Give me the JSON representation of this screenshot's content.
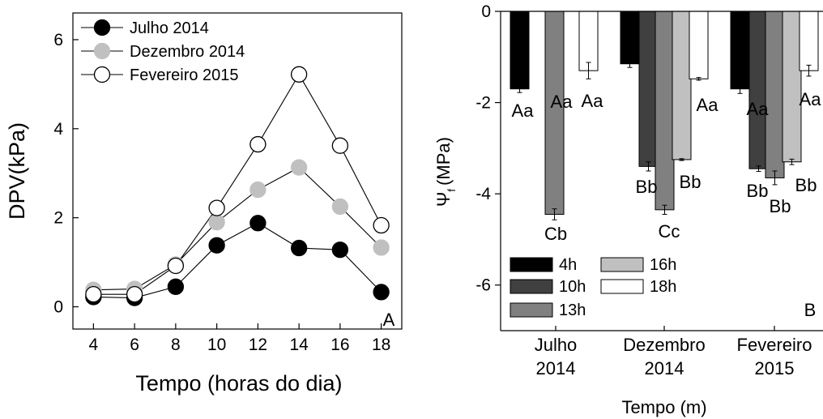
{
  "chart_data": [
    {
      "type": "line",
      "panel_label": "A",
      "xlabel": "Tempo (horas do dia)",
      "ylabel": "DPV(kPa)",
      "xlim": [
        3,
        19
      ],
      "ylim": [
        -0.5,
        6.6
      ],
      "xticks": [
        "4",
        "6",
        "8",
        "10",
        "12",
        "14",
        "16",
        "18"
      ],
      "yticks": [
        "0",
        "2",
        "4",
        "6"
      ],
      "x": [
        4,
        6,
        8,
        10,
        12,
        14,
        16,
        18
      ],
      "legend_position": "top-left",
      "series": [
        {
          "name": "Julho 2014",
          "marker": "filled",
          "color": "#000000",
          "values": [
            0.22,
            0.2,
            0.45,
            1.38,
            1.88,
            1.32,
            1.28,
            0.33
          ]
        },
        {
          "name": "Dezembro 2014",
          "marker": "filled",
          "color": "#c0c0c0",
          "values": [
            0.38,
            0.4,
            0.95,
            1.9,
            2.63,
            3.13,
            2.25,
            1.33
          ]
        },
        {
          "name": "Fevereiro 2015",
          "marker": "open",
          "color": "#ffffff",
          "values": [
            0.28,
            0.28,
            0.92,
            2.22,
            3.65,
            5.22,
            3.62,
            1.83
          ]
        }
      ]
    },
    {
      "type": "bar",
      "panel_label": "B",
      "xlabel": "Tempo (m)",
      "ylabel": "Ψ",
      "ylabel_subscript": "f",
      "ylabel_unit": "(MPa)",
      "ylim": [
        -7,
        0
      ],
      "yticks": [
        "0",
        "-2",
        "-4",
        "-6"
      ],
      "categories": [
        "Julho\n2014",
        "Dezembro\n2014",
        "Fevereiro\n2015"
      ],
      "legend_position": "bottom-left",
      "series": [
        {
          "name": "4h",
          "color": "#000000",
          "values": [
            -1.7,
            -1.15,
            -1.7
          ],
          "errors": [
            0.08,
            0.08,
            0.1
          ],
          "labels": [
            "Aa",
            "Aa",
            "Aa"
          ]
        },
        {
          "name": "10h",
          "color": "#404040",
          "values": [
            null,
            -3.4,
            -3.45
          ],
          "errors": [
            null,
            0.1,
            0.06
          ],
          "labels": [
            "",
            "Bb",
            "Bb"
          ]
        },
        {
          "name": "13h",
          "color": "#808080",
          "values": [
            -4.45,
            -4.35,
            -3.65
          ],
          "errors": [
            0.12,
            0.1,
            0.15
          ],
          "labels": [
            "Cb",
            "Cc",
            "Bb"
          ]
        },
        {
          "name": "16h",
          "color": "#c0c0c0",
          "values": [
            null,
            -3.25,
            -3.3
          ],
          "errors": [
            null,
            0.02,
            0.06
          ],
          "labels": [
            "",
            "Bb",
            "Bb"
          ]
        },
        {
          "name": "18h",
          "color": "#ffffff",
          "values": [
            -1.3,
            -1.48,
            -1.3
          ],
          "errors": [
            0.18,
            0.03,
            0.12
          ],
          "labels": [
            "Aa",
            "Aa",
            "Aa"
          ]
        }
      ]
    }
  ]
}
